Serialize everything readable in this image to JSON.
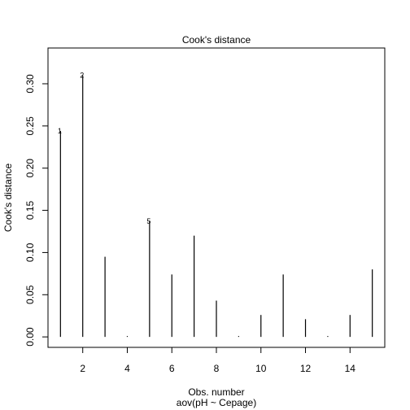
{
  "chart_data": {
    "type": "bar",
    "style": "vertical-lines",
    "title": "Cook's distance",
    "xlabel": "Obs. number",
    "subtitle": "aov(pH ~ Cepage)",
    "ylabel": "Cook's distance",
    "x": [
      1,
      2,
      3,
      4,
      5,
      6,
      7,
      8,
      9,
      10,
      11,
      12,
      13,
      14,
      15
    ],
    "values": [
      0.244,
      0.31,
      0.095,
      0.001,
      0.137,
      0.074,
      0.12,
      0.043,
      0.001,
      0.026,
      0.074,
      0.021,
      0.001,
      0.026,
      0.08
    ],
    "point_labels": [
      {
        "x": 1,
        "label": "1"
      },
      {
        "x": 2,
        "label": "2"
      },
      {
        "x": 5,
        "label": "5"
      }
    ],
    "xlim": [
      0.44,
      15.56
    ],
    "ylim": [
      -0.0124,
      0.3424
    ],
    "xticks": [
      2,
      4,
      6,
      8,
      10,
      12,
      14
    ],
    "yticks": [
      0.0,
      0.05,
      0.1,
      0.15,
      0.2,
      0.25,
      0.3
    ],
    "xtick_labels": [
      "2",
      "4",
      "6",
      "8",
      "10",
      "12",
      "14"
    ],
    "ytick_labels": [
      "0.00",
      "0.05",
      "0.10",
      "0.15",
      "0.20",
      "0.25",
      "0.30"
    ],
    "grid": false,
    "legend": "none"
  }
}
